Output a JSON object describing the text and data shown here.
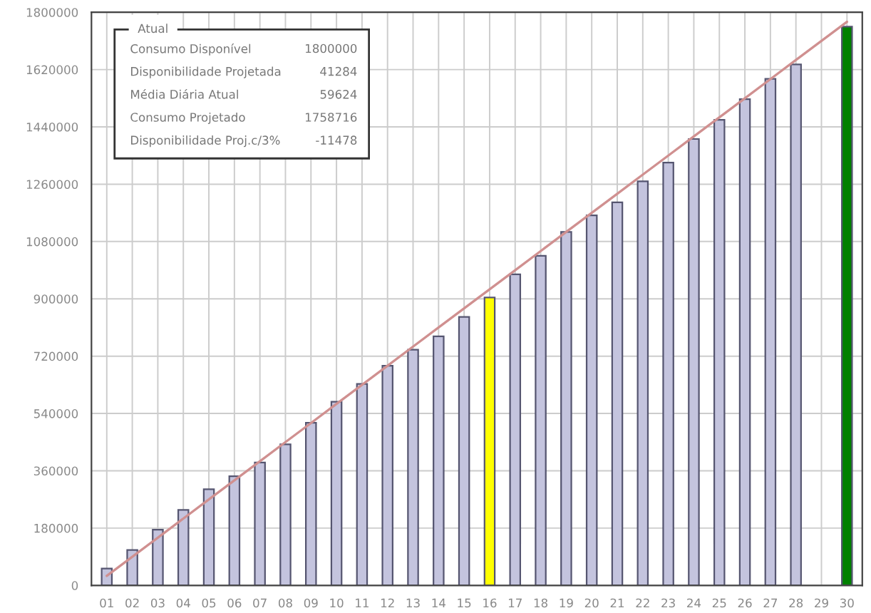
{
  "chart_data": {
    "type": "bar",
    "categories": [
      "01",
      "02",
      "03",
      "04",
      "05",
      "06",
      "07",
      "08",
      "09",
      "10",
      "11",
      "12",
      "13",
      "14",
      "15",
      "16",
      "17",
      "18",
      "19",
      "20",
      "21",
      "22",
      "23",
      "24",
      "25",
      "26",
      "27",
      "28",
      "29",
      "30"
    ],
    "series": [
      {
        "colors": [
          "#c4c4de",
          "#c4c4de",
          "#c4c4de",
          "#c4c4de",
          "#c4c4de",
          "#c4c4de",
          "#c4c4de",
          "#c4c4de",
          "#c4c4de",
          "#c4c4de",
          "#c4c4de",
          "#c4c4de",
          "#c4c4de",
          "#c4c4de",
          "#c4c4de",
          "#ffff00",
          "#c4c4de",
          "#c4c4de",
          "#c4c4de",
          "#c4c4de",
          "#c4c4de",
          "#c4c4de",
          "#c4c4de",
          "#c4c4de",
          "#c4c4de",
          "#c4c4de",
          "#c4c4de",
          "#c4c4de",
          "#c4c4de",
          "#008000"
        ],
        "values": [
          53000,
          111000,
          175000,
          237000,
          302000,
          343000,
          386000,
          443000,
          511000,
          577000,
          633000,
          690000,
          740000,
          782000,
          843000,
          904000,
          977000,
          1035000,
          1110000,
          1162000,
          1203000,
          1269000,
          1328000,
          1402000,
          1462000,
          1527000,
          1591000,
          1636000,
          null,
          1755000
        ]
      },
      {
        "type": "line",
        "color": "#d09090",
        "values": [
          30000,
          90000,
          150000,
          210000,
          270000,
          330000,
          390000,
          450000,
          510000,
          570000,
          630000,
          690000,
          750000,
          810000,
          870000,
          930000,
          990000,
          1050000,
          1110000,
          1170000,
          1230000,
          1290000,
          1350000,
          1410000,
          1470000,
          1530000,
          1590000,
          1650000,
          1710000,
          1770000
        ]
      }
    ],
    "ylim": [
      0,
      1800000
    ],
    "yticks": [
      0,
      180000,
      360000,
      540000,
      720000,
      900000,
      1080000,
      1260000,
      1440000,
      1620000,
      1800000
    ],
    "grid": true,
    "legend": false,
    "annotations": [
      "Atual",
      "Consumo Disponível",
      "1800000",
      "Disponibilidade Projetada",
      "41284",
      "Média Diária Atual",
      "59624",
      "Consumo Projetado",
      "1758716",
      "Disponibilidade Proj.c/3%",
      "-11478"
    ]
  }
}
